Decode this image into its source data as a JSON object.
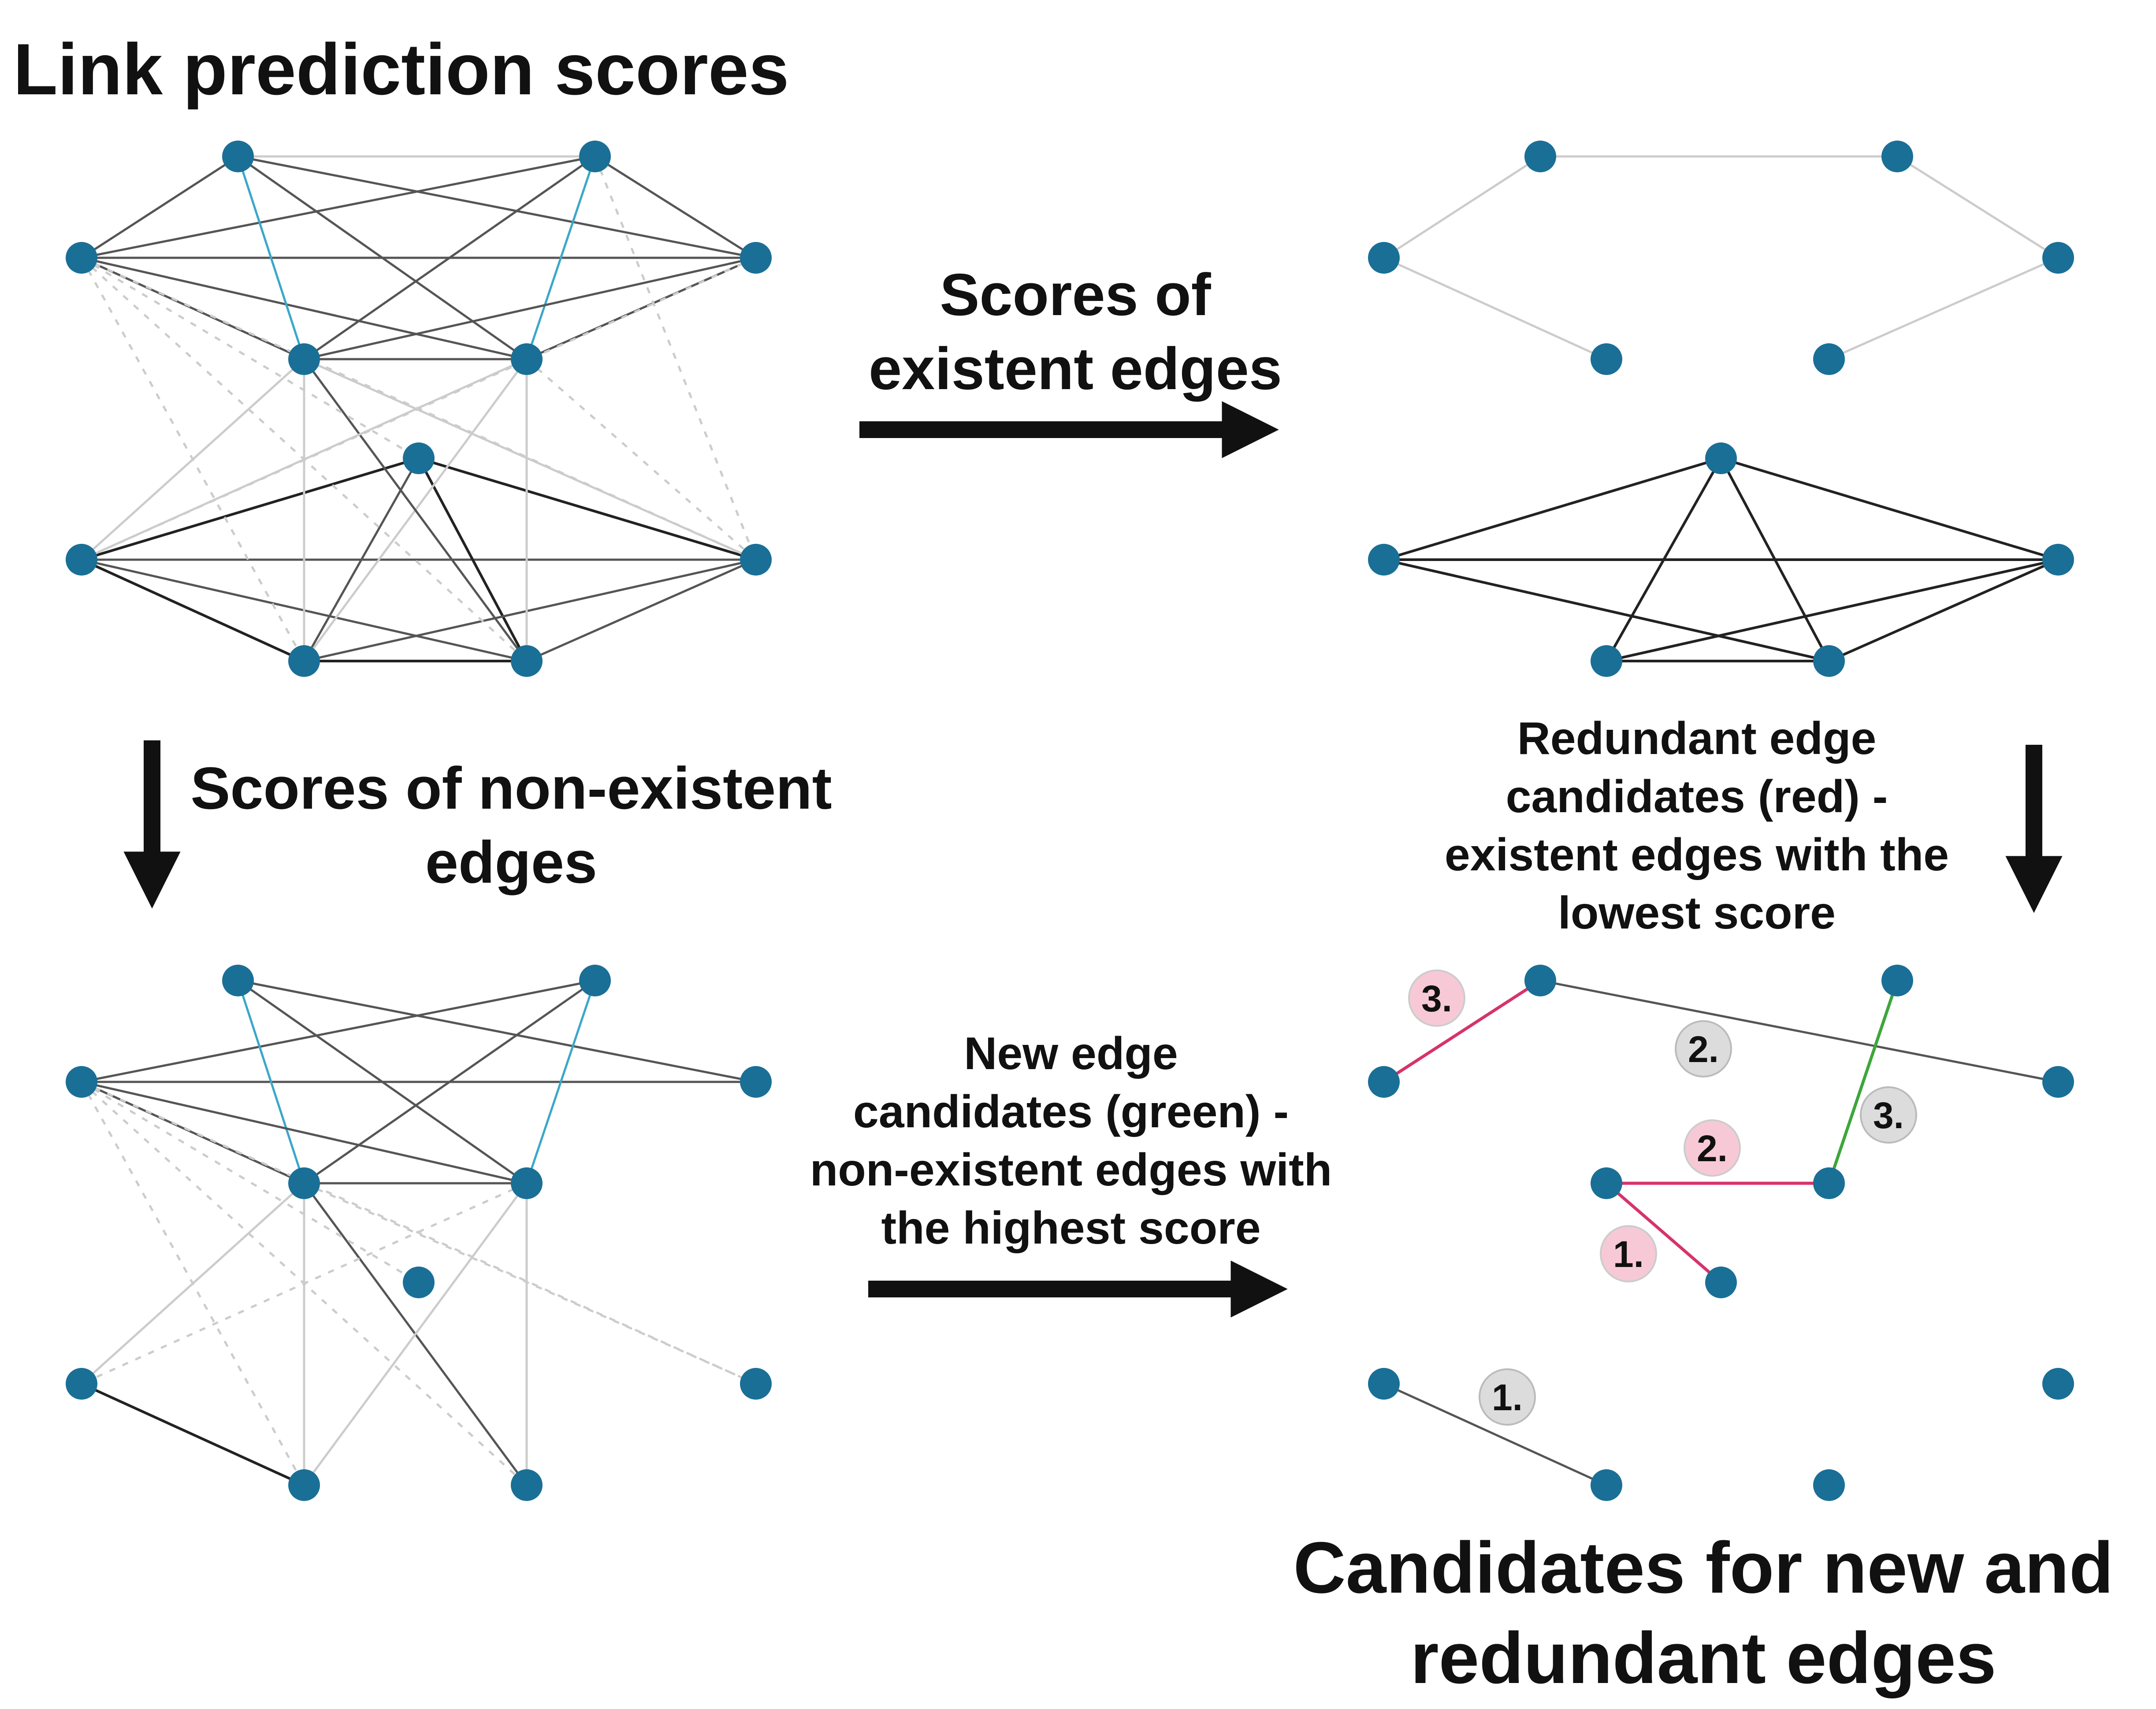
{
  "titles": {
    "top_left": "Link prediction scores",
    "bottom_right_line1": "Candidates for new and",
    "bottom_right_line2": "redundant edges"
  },
  "arrow_labels": {
    "existent_line1": "Scores of",
    "existent_line2": "existent edges",
    "nonexistent_line1": "Scores of non-existent",
    "nonexistent_line2": "edges",
    "redundant_line1": "Redundant edge",
    "redundant_line2": "candidates (red) -",
    "redundant_line3": "existent edges with the",
    "redundant_line4": "lowest score",
    "new_line1": "New edge",
    "new_line2": "candidates (green) -",
    "new_line3": "non-existent edges with",
    "new_line4": "the highest score"
  },
  "badges": {
    "red_1": "1.",
    "red_2": "2.",
    "red_3": "3.",
    "gray_1": "1.",
    "gray_2": "2.",
    "gray_3": "3."
  },
  "colors": {
    "node": "#1a6f96",
    "edge_dark": "#555555",
    "edge_light": "#cccccc",
    "edge_blue": "#3ba7c9",
    "redundant_edge": "#d6336c",
    "new_edge": "#3da63a",
    "badge_red_fill": "#f7c9d6",
    "badge_gray_fill": "#dcdcdc",
    "arrow": "#111111"
  }
}
